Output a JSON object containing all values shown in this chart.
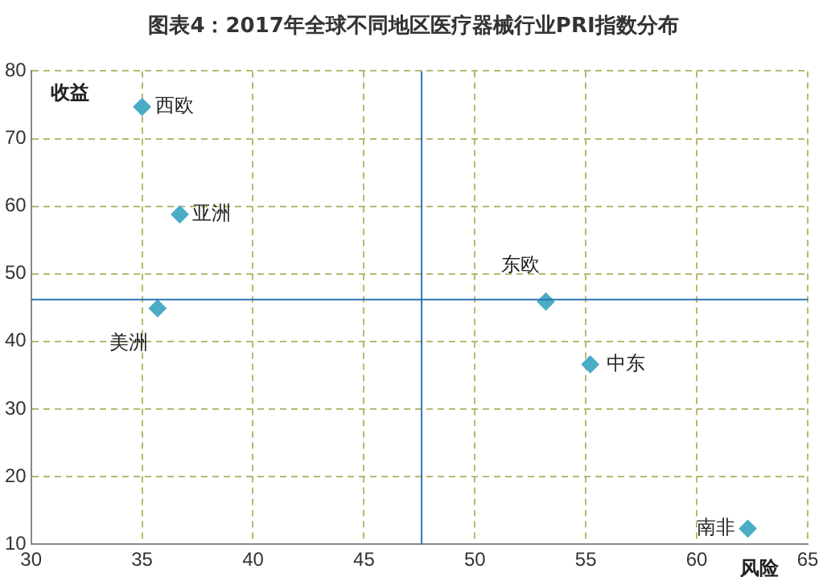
{
  "chart_data": {
    "type": "scatter",
    "title": "图表4：2017年全球不同地区医疗器械行业PRI指数分布",
    "xlabel": "风险",
    "ylabel": "收益",
    "series": [
      {
        "name": "西欧",
        "color": "#4bacc6",
        "x": [
          35
        ],
        "values": [
          74.7
        ]
      },
      {
        "name": "亚洲",
        "color": "#4bacc6",
        "x": [
          36.7
        ],
        "values": [
          58.8
        ]
      },
      {
        "name": "美洲",
        "color": "#4bacc6",
        "x": [
          35.7
        ],
        "values": [
          44.9
        ]
      },
      {
        "name": "东欧",
        "color": "#4bacc6",
        "x": [
          53.2
        ],
        "values": [
          45.9
        ]
      },
      {
        "name": "中东",
        "color": "#4bacc6",
        "x": [
          55.2
        ],
        "values": [
          36.6
        ]
      },
      {
        "name": "南非",
        "color": "#4bacc6",
        "x": [
          62.3
        ],
        "values": [
          12.3
        ]
      }
    ],
    "xlim": [
      30,
      65
    ],
    "xticks": [
      30,
      35,
      40,
      45,
      50,
      55,
      60,
      65
    ],
    "ylim": [
      10,
      80
    ],
    "yticks": [
      10,
      20,
      30,
      40,
      50,
      60,
      70,
      80
    ],
    "ref_lines": [
      {
        "axis": "x",
        "value": 47.6,
        "color": "#2e75b6"
      },
      {
        "axis": "y",
        "value": 46.2,
        "color": "#2e75b6"
      }
    ],
    "grid": true,
    "legend": false,
    "marker": "diamond"
  }
}
